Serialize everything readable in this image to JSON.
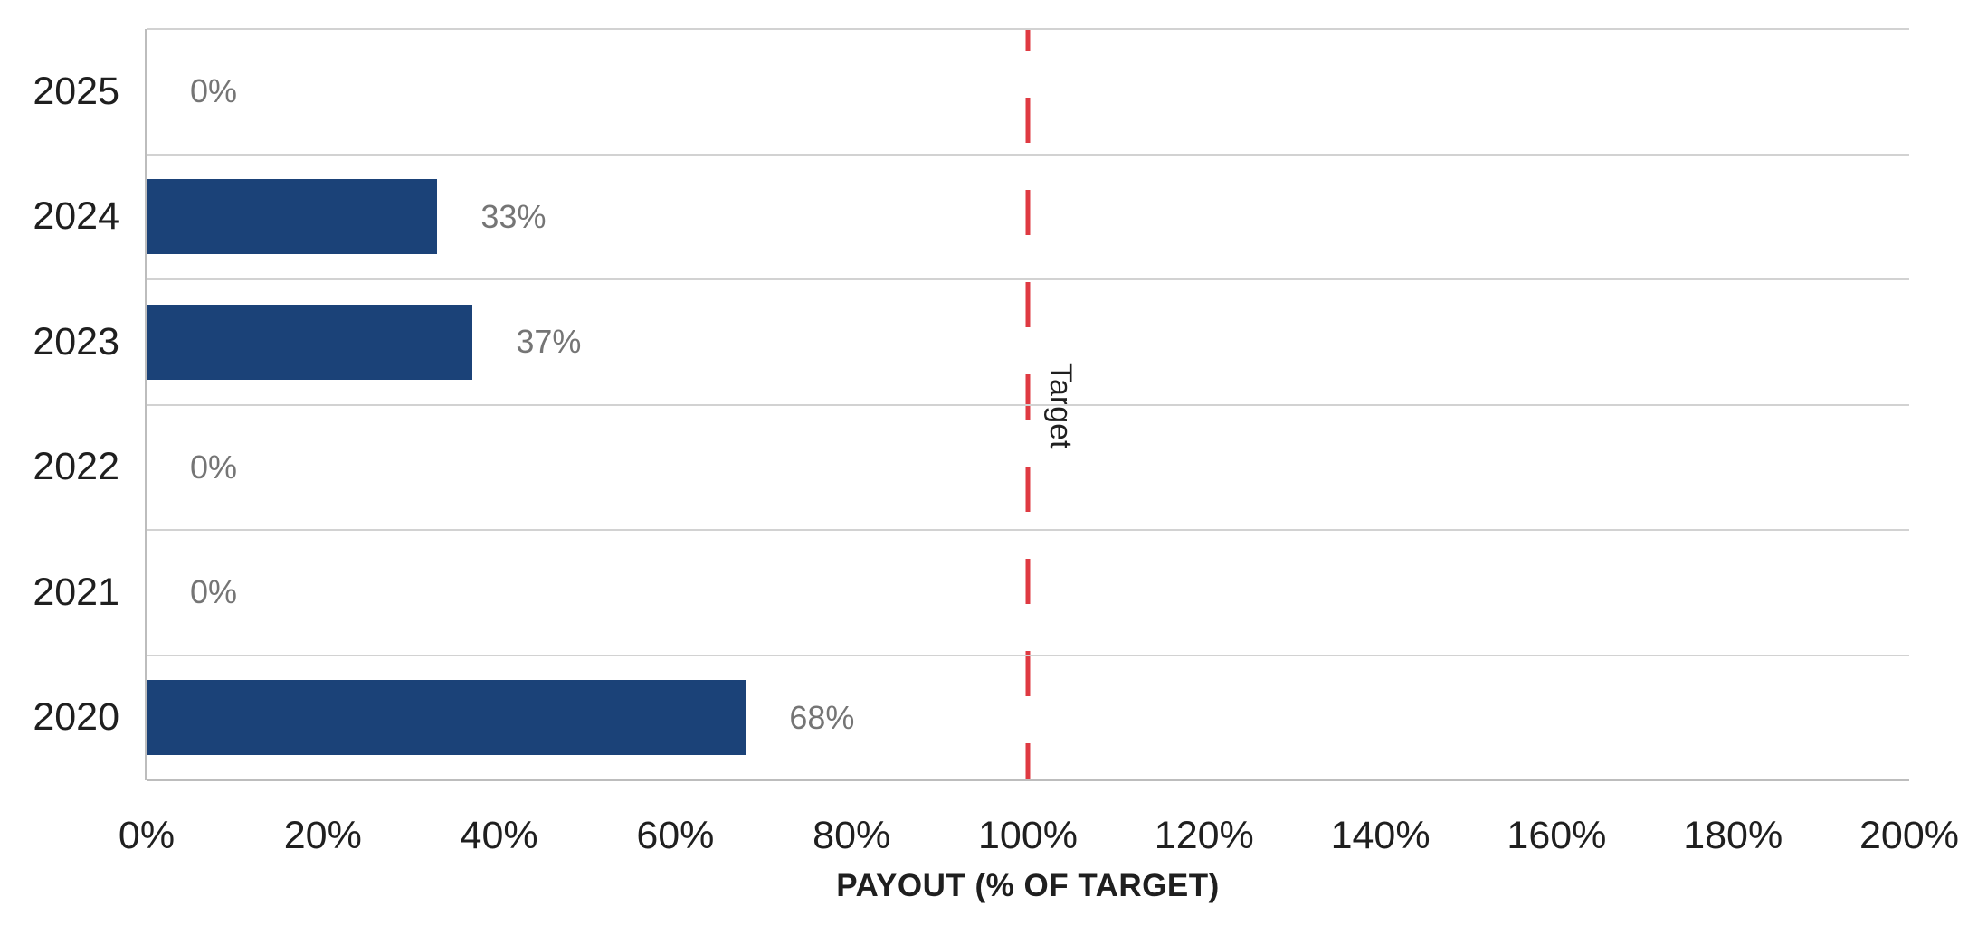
{
  "chart_data": {
    "type": "bar",
    "orientation": "horizontal",
    "title": "",
    "categories": [
      "2025",
      "2024",
      "2023",
      "2022",
      "2021",
      "2020"
    ],
    "values": [
      0,
      33,
      37,
      0,
      0,
      68
    ],
    "value_labels": [
      "0%",
      "33%",
      "37%",
      "0%",
      "0%",
      "68%"
    ],
    "xlabel": "PAYOUT (% OF TARGET)",
    "ylabel": "",
    "xlim": [
      0,
      200
    ],
    "x_tick_step_pct": 20,
    "x_tick_labels": [
      "0%",
      "20%",
      "40%",
      "60%",
      "80%",
      "100%",
      "120%",
      "140%",
      "160%",
      "180%",
      "200%"
    ],
    "grid": "horizontal-category-separators",
    "legend": "none",
    "target_line": {
      "label": "Target",
      "value_pct": 100,
      "style": "dashed"
    }
  },
  "colors": {
    "background": "#FFFFFF",
    "bar": "#1B4278",
    "target_line": "#DF3A42",
    "gridline": "#D2D2D2",
    "axis_line": "#BDBDBD",
    "axis_text": "#1F1F1F",
    "data_label": "#757575"
  }
}
